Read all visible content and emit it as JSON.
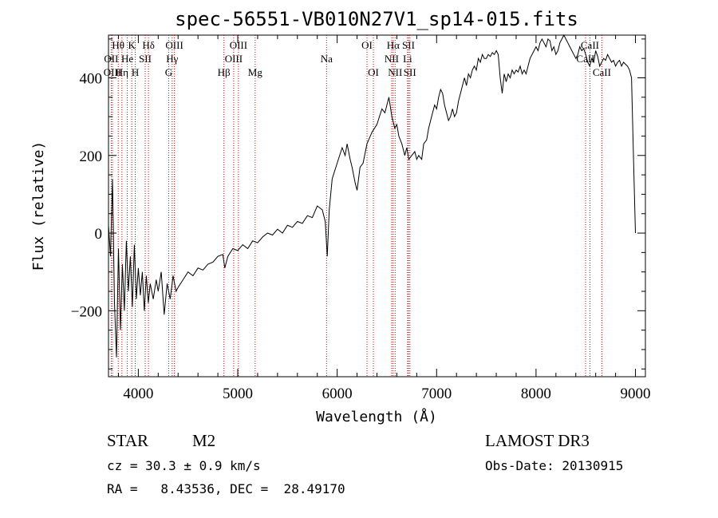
{
  "chart_data": {
    "type": "line",
    "title": "spec-56551-VB010N27V1_sp14-015.fits",
    "xlabel": "Wavelength (Å)",
    "ylabel": "Flux (relative)",
    "xlim": [
      3700,
      9100
    ],
    "ylim": [
      -370,
      510
    ],
    "x_ticks": [
      4000,
      5000,
      6000,
      7000,
      8000,
      9000
    ],
    "y_ticks": [
      -200,
      0,
      200,
      400
    ],
    "series": [
      {
        "name": "flux",
        "points": [
          [
            3700,
            20
          ],
          [
            3720,
            -60
          ],
          [
            3740,
            140
          ],
          [
            3760,
            -180
          ],
          [
            3780,
            -320
          ],
          [
            3800,
            -40
          ],
          [
            3820,
            -250
          ],
          [
            3840,
            -80
          ],
          [
            3860,
            -200
          ],
          [
            3880,
            -20
          ],
          [
            3900,
            -150
          ],
          [
            3920,
            -60
          ],
          [
            3940,
            -190
          ],
          [
            3960,
            -30
          ],
          [
            3980,
            -170
          ],
          [
            4000,
            -90
          ],
          [
            4020,
            -160
          ],
          [
            4040,
            -100
          ],
          [
            4060,
            -200
          ],
          [
            4080,
            -110
          ],
          [
            4100,
            -180
          ],
          [
            4120,
            -130
          ],
          [
            4150,
            -170
          ],
          [
            4180,
            -120
          ],
          [
            4200,
            -150
          ],
          [
            4230,
            -100
          ],
          [
            4260,
            -210
          ],
          [
            4290,
            -130
          ],
          [
            4320,
            -170
          ],
          [
            4350,
            -110
          ],
          [
            4380,
            -150
          ],
          [
            4400,
            -140
          ],
          [
            4450,
            -120
          ],
          [
            4500,
            -100
          ],
          [
            4550,
            -110
          ],
          [
            4600,
            -90
          ],
          [
            4650,
            -95
          ],
          [
            4700,
            -80
          ],
          [
            4750,
            -75
          ],
          [
            4800,
            -60
          ],
          [
            4850,
            -55
          ],
          [
            4870,
            -90
          ],
          [
            4900,
            -60
          ],
          [
            4950,
            -40
          ],
          [
            5000,
            -45
          ],
          [
            5050,
            -30
          ],
          [
            5100,
            -40
          ],
          [
            5150,
            -20
          ],
          [
            5200,
            -25
          ],
          [
            5250,
            -10
          ],
          [
            5300,
            0
          ],
          [
            5350,
            -5
          ],
          [
            5400,
            10
          ],
          [
            5450,
            0
          ],
          [
            5500,
            20
          ],
          [
            5550,
            15
          ],
          [
            5600,
            30
          ],
          [
            5650,
            25
          ],
          [
            5700,
            45
          ],
          [
            5750,
            40
          ],
          [
            5800,
            70
          ],
          [
            5850,
            60
          ],
          [
            5880,
            30
          ],
          [
            5900,
            -60
          ],
          [
            5920,
            60
          ],
          [
            5950,
            140
          ],
          [
            6000,
            180
          ],
          [
            6050,
            220
          ],
          [
            6080,
            200
          ],
          [
            6100,
            230
          ],
          [
            6130,
            190
          ],
          [
            6150,
            170
          ],
          [
            6180,
            130
          ],
          [
            6200,
            110
          ],
          [
            6230,
            170
          ],
          [
            6260,
            180
          ],
          [
            6300,
            230
          ],
          [
            6350,
            260
          ],
          [
            6400,
            280
          ],
          [
            6450,
            320
          ],
          [
            6480,
            310
          ],
          [
            6500,
            330
          ],
          [
            6520,
            350
          ],
          [
            6550,
            300
          ],
          [
            6580,
            270
          ],
          [
            6600,
            280
          ],
          [
            6620,
            250
          ],
          [
            6650,
            230
          ],
          [
            6680,
            200
          ],
          [
            6700,
            220
          ],
          [
            6720,
            190
          ],
          [
            6750,
            200
          ],
          [
            6780,
            210
          ],
          [
            6800,
            190
          ],
          [
            6820,
            200
          ],
          [
            6850,
            190
          ],
          [
            6870,
            230
          ],
          [
            6900,
            240
          ],
          [
            6920,
            270
          ],
          [
            6950,
            300
          ],
          [
            6980,
            330
          ],
          [
            7000,
            320
          ],
          [
            7020,
            350
          ],
          [
            7040,
            370
          ],
          [
            7060,
            360
          ],
          [
            7080,
            330
          ],
          [
            7100,
            310
          ],
          [
            7120,
            290
          ],
          [
            7140,
            300
          ],
          [
            7160,
            320
          ],
          [
            7180,
            300
          ],
          [
            7200,
            310
          ],
          [
            7220,
            340
          ],
          [
            7240,
            360
          ],
          [
            7260,
            380
          ],
          [
            7280,
            400
          ],
          [
            7300,
            380
          ],
          [
            7320,
            410
          ],
          [
            7340,
            400
          ],
          [
            7360,
            420
          ],
          [
            7380,
            430
          ],
          [
            7400,
            420
          ],
          [
            7420,
            450
          ],
          [
            7440,
            440
          ],
          [
            7460,
            460
          ],
          [
            7480,
            450
          ],
          [
            7500,
            450
          ],
          [
            7520,
            460
          ],
          [
            7540,
            455
          ],
          [
            7560,
            465
          ],
          [
            7580,
            460
          ],
          [
            7600,
            470
          ],
          [
            7620,
            460
          ],
          [
            7640,
            400
          ],
          [
            7660,
            360
          ],
          [
            7680,
            410
          ],
          [
            7700,
            390
          ],
          [
            7720,
            410
          ],
          [
            7740,
            400
          ],
          [
            7760,
            420
          ],
          [
            7780,
            410
          ],
          [
            7800,
            420
          ],
          [
            7820,
            415
          ],
          [
            7840,
            430
          ],
          [
            7860,
            410
          ],
          [
            7880,
            420
          ],
          [
            7900,
            410
          ],
          [
            7920,
            430
          ],
          [
            7940,
            450
          ],
          [
            7960,
            460
          ],
          [
            7980,
            470
          ],
          [
            8000,
            480
          ],
          [
            8020,
            470
          ],
          [
            8040,
            490
          ],
          [
            8060,
            500
          ],
          [
            8080,
            490
          ],
          [
            8100,
            480
          ],
          [
            8120,
            500
          ],
          [
            8140,
            495
          ],
          [
            8160,
            470
          ],
          [
            8180,
            480
          ],
          [
            8200,
            460
          ],
          [
            8220,
            470
          ],
          [
            8240,
            490
          ],
          [
            8260,
            500
          ],
          [
            8280,
            510
          ],
          [
            8300,
            500
          ],
          [
            8320,
            490
          ],
          [
            8340,
            480
          ],
          [
            8360,
            470
          ],
          [
            8380,
            460
          ],
          [
            8400,
            450
          ],
          [
            8420,
            460
          ],
          [
            8440,
            480
          ],
          [
            8460,
            470
          ],
          [
            8480,
            475
          ],
          [
            8500,
            460
          ],
          [
            8520,
            440
          ],
          [
            8540,
            430
          ],
          [
            8560,
            450
          ],
          [
            8580,
            440
          ],
          [
            8600,
            470
          ],
          [
            8620,
            455
          ],
          [
            8640,
            430
          ],
          [
            8660,
            440
          ],
          [
            8680,
            450
          ],
          [
            8700,
            445
          ],
          [
            8720,
            460
          ],
          [
            8740,
            450
          ],
          [
            8760,
            440
          ],
          [
            8780,
            445
          ],
          [
            8800,
            430
          ],
          [
            8820,
            440
          ],
          [
            8840,
            445
          ],
          [
            8860,
            430
          ],
          [
            8880,
            440
          ],
          [
            8900,
            435
          ],
          [
            8920,
            430
          ],
          [
            8940,
            420
          ],
          [
            8960,
            400
          ],
          [
            8980,
            200
          ],
          [
            9000,
            0
          ]
        ]
      }
    ],
    "emission_lines": [
      {
        "label": "Hθ",
        "wave": 3798,
        "row": 1
      },
      {
        "label": "OII",
        "wave": 3727,
        "row": 2
      },
      {
        "label": "OIII",
        "wave": 3740,
        "row": 3
      },
      {
        "label": "K",
        "wave": 3934,
        "row": 1
      },
      {
        "label": "He",
        "wave": 3889,
        "row": 2
      },
      {
        "label": "Hη",
        "wave": 3835,
        "row": 3
      },
      {
        "label": "Hδ",
        "wave": 4102,
        "row": 1
      },
      {
        "label": "SII",
        "wave": 4069,
        "row": 2
      },
      {
        "label": "H",
        "wave": 3969,
        "row": 3
      },
      {
        "label": "OIII",
        "wave": 4363,
        "row": 1
      },
      {
        "label": "Hγ",
        "wave": 4340,
        "row": 2
      },
      {
        "label": "G",
        "wave": 4305,
        "row": 3
      },
      {
        "label": "OIII",
        "wave": 5007,
        "row": 1
      },
      {
        "label": "OIII",
        "wave": 4959,
        "row": 2
      },
      {
        "label": "Hβ",
        "wave": 4861,
        "row": 3
      },
      {
        "label": "Mg",
        "wave": 5175,
        "row": 3
      },
      {
        "label": "Na",
        "wave": 5893,
        "row": 2
      },
      {
        "label": "OI",
        "wave": 6300,
        "row": 1
      },
      {
        "label": "OI",
        "wave": 6364,
        "row": 3
      },
      {
        "label": "Hα",
        "wave": 6563,
        "row": 1
      },
      {
        "label": "NII",
        "wave": 6548,
        "row": 2
      },
      {
        "label": "NII",
        "wave": 6583,
        "row": 3
      },
      {
        "label": "SII",
        "wave": 6717,
        "row": 1
      },
      {
        "label": "Li",
        "wave": 6708,
        "row": 2
      },
      {
        "label": "SII",
        "wave": 6731,
        "row": 3
      },
      {
        "label": "CaII",
        "wave": 8542,
        "row": 1
      },
      {
        "label": "CaII",
        "wave": 8498,
        "row": 2
      },
      {
        "label": "CaII",
        "wave": 8662,
        "row": 3
      }
    ],
    "line_color": "#cc0000"
  },
  "info": {
    "class_label": "STAR",
    "subclass": "M2",
    "survey": "LAMOST DR3",
    "cz": "cz = 30.3 ± 0.9 km/s",
    "obs_date": "Obs-Date: 20130915",
    "radec": "RA =   8.43536, DEC =  28.49170"
  }
}
